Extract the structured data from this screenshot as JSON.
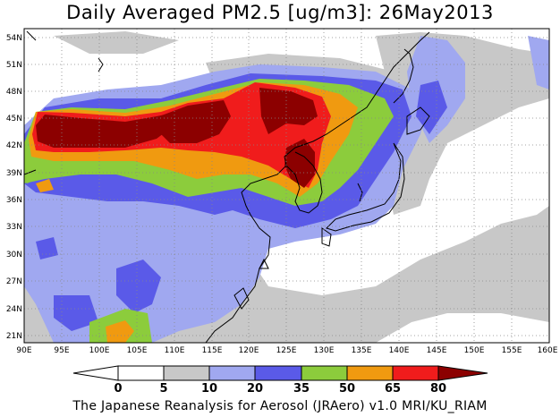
{
  "title": "Daily Averaged PM2.5 [ug/m3]: 26May2013",
  "credit": "The Japanese Reanalysis for Aerosol (JRAero) v1.0 MRI/KU_RIAM",
  "map": {
    "lat_labels": [
      "54N",
      "51N",
      "48N",
      "45N",
      "42N",
      "39N",
      "36N",
      "33N",
      "30N",
      "27N",
      "24N",
      "21N"
    ],
    "lon_labels": [
      "90E",
      "95E",
      "100E",
      "105E",
      "110E",
      "115E",
      "120E",
      "125E",
      "130E",
      "135E",
      "140E",
      "145E",
      "150E",
      "155E",
      "160E"
    ],
    "lon_range": [
      90,
      160
    ],
    "lat_range": [
      20,
      55.5
    ],
    "grid": "dotted"
  },
  "colorbar": {
    "levels": [
      "0",
      "5",
      "10",
      "20",
      "35",
      "50",
      "65",
      "80"
    ],
    "colors": [
      "#ffffff",
      "#c8c8c8",
      "#a0a8f0",
      "#5a5ae8",
      "#8ccc3c",
      "#f09a10",
      "#f01c1c",
      "#8c0000"
    ]
  }
}
